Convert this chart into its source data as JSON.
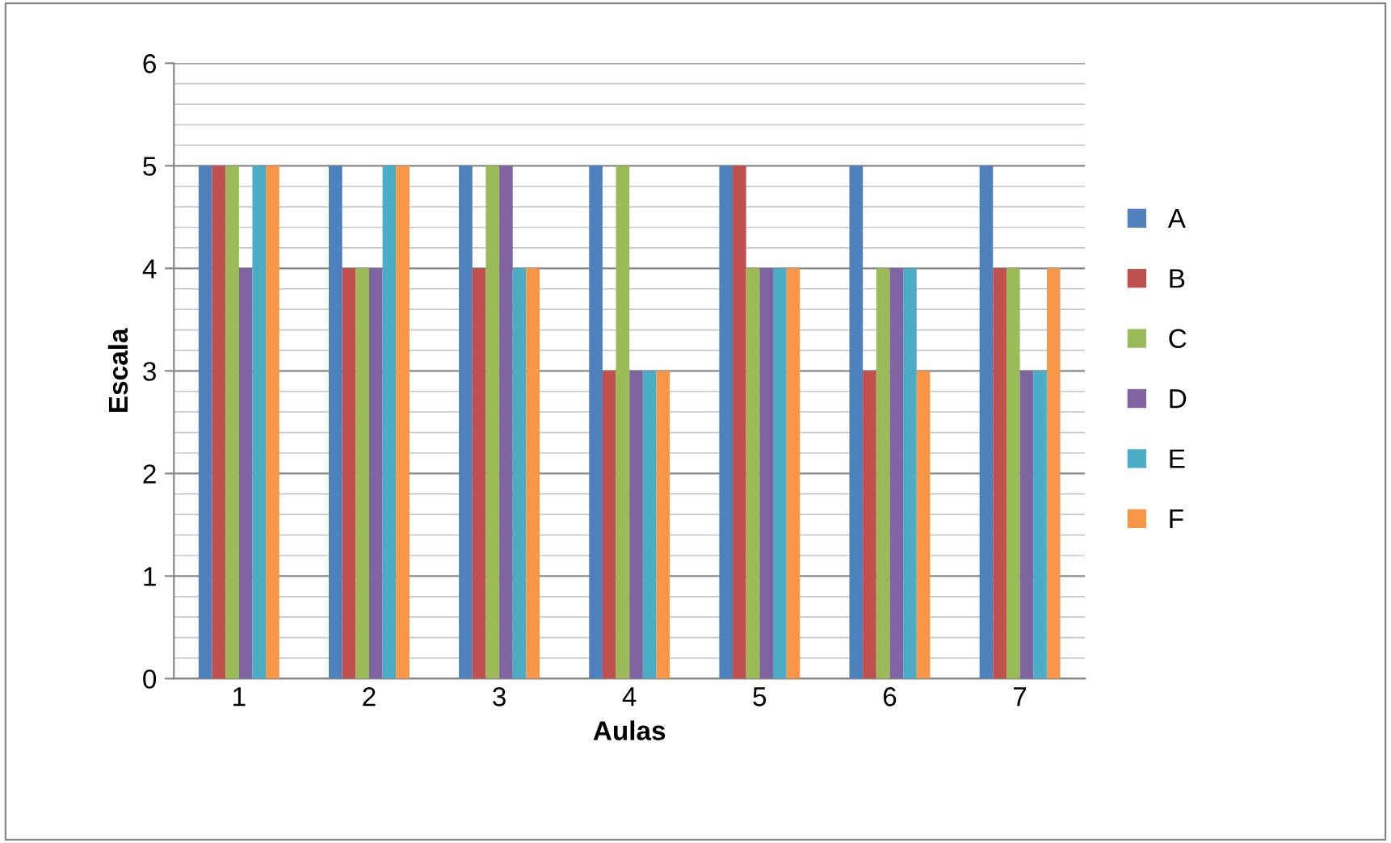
{
  "chart_data": {
    "type": "bar",
    "xlabel": "Aulas",
    "ylabel": "Escala",
    "categories": [
      "1",
      "2",
      "3",
      "4",
      "5",
      "6",
      "7"
    ],
    "series": [
      {
        "name": "A",
        "color": "#4f81bd",
        "values": [
          5,
          5,
          5,
          5,
          5,
          5,
          5
        ]
      },
      {
        "name": "B",
        "color": "#c0504d",
        "values": [
          5,
          4,
          4,
          3,
          5,
          3,
          4
        ]
      },
      {
        "name": "C",
        "color": "#9bbb59",
        "values": [
          5,
          4,
          5,
          5,
          4,
          4,
          4
        ]
      },
      {
        "name": "D",
        "color": "#8064a2",
        "values": [
          4,
          4,
          5,
          3,
          4,
          4,
          3
        ]
      },
      {
        "name": "E",
        "color": "#4bacc6",
        "values": [
          5,
          5,
          4,
          3,
          4,
          4,
          3
        ]
      },
      {
        "name": "F",
        "color": "#f79646",
        "values": [
          5,
          5,
          4,
          3,
          4,
          3,
          4
        ]
      }
    ],
    "ylim": [
      0,
      6
    ],
    "yticks": [
      0,
      1,
      2,
      3,
      4,
      5,
      6
    ],
    "grid": "y",
    "legend": "right"
  }
}
